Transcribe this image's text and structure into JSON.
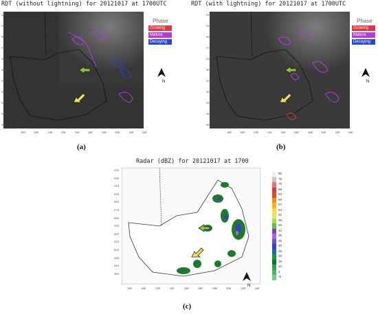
{
  "panel_a": {
    "title": "RDT (without lightning)  for  20121017  at  1700UTC",
    "label": "(a)"
  },
  "panel_b": {
    "title": "RDT (with lightning)  for  20121017  at  1700UTC",
    "label": "(b)"
  },
  "panel_c": {
    "title": "Radar (dBZ) for 20121017 at 1700",
    "label": "(c)"
  },
  "legend": {
    "title": "Phase",
    "items": [
      {
        "label": "Growing",
        "color": "#e8323c"
      },
      {
        "label": "Mature",
        "color": "#b43cdc"
      },
      {
        "label": "Decaying",
        "color": "#2846dc"
      }
    ]
  },
  "north_label": "N",
  "lat_ticks_ab": [
    "22S",
    "24S",
    "26S",
    "27S",
    "29S",
    "30S",
    "31S",
    "32S",
    "33S",
    "34S",
    "35S"
  ],
  "lon_ticks_ab": [
    "16E",
    "18E",
    "20E",
    "22E",
    "24E",
    "26E",
    "28E",
    "30E",
    "32E",
    "34E"
  ],
  "lat_ticks_c": [
    "22S",
    "23S",
    "24S",
    "25S",
    "26S",
    "27S",
    "28S",
    "29S",
    "30S",
    "31S",
    "32S",
    "33S",
    "34S",
    "35S"
  ],
  "lon_ticks_c": [
    "16E",
    "18E",
    "20E",
    "22E",
    "24E",
    "26E",
    "28E",
    "30E",
    "32E",
    "34E"
  ],
  "radar_scale": {
    "labels": [
      "80",
      "75",
      "70",
      "66",
      "63",
      "60",
      "57",
      "54",
      "51",
      "48",
      "45",
      "42",
      "39",
      "35",
      "30",
      "25",
      "20",
      "15",
      "10",
      "5",
      "-5"
    ],
    "colors": [
      "#f0f0f0",
      "#c8c8c8",
      "#f06e78",
      "#e6323c",
      "#dc5028",
      "#f08c1e",
      "#f5b414",
      "#fadc32",
      "#e6e664",
      "#aadc46",
      "#50c850",
      "#8c3cbe",
      "#b464dc",
      "#6450d2",
      "#3c3cc8",
      "#1e64c8",
      "#14963c",
      "#0a7828",
      "#32a050",
      "#50b464",
      "#78c88c"
    ]
  }
}
